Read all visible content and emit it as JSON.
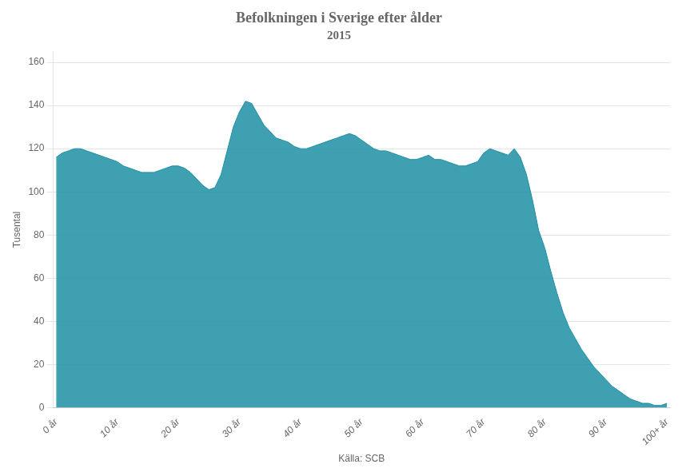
{
  "chart_data": {
    "type": "area",
    "title": "Befolkningen i Sverige efter ålder",
    "subtitle": "2015",
    "ylabel": "Tusental",
    "xlabel": "Källa: SCB",
    "color": "#1c8fa3",
    "x": [
      0,
      1,
      2,
      3,
      4,
      5,
      6,
      7,
      8,
      9,
      10,
      11,
      12,
      13,
      14,
      15,
      16,
      17,
      18,
      19,
      20,
      21,
      22,
      23,
      24,
      25,
      26,
      27,
      28,
      29,
      30,
      31,
      32,
      33,
      34,
      35,
      36,
      37,
      38,
      39,
      40,
      41,
      42,
      43,
      44,
      45,
      46,
      47,
      48,
      49,
      50,
      51,
      52,
      53,
      54,
      55,
      56,
      57,
      58,
      59,
      60,
      61,
      62,
      63,
      64,
      65,
      66,
      67,
      68,
      69,
      70,
      71,
      72,
      73,
      74,
      75,
      76,
      77,
      78,
      79,
      80,
      81,
      82,
      83,
      84,
      85,
      86,
      87,
      88,
      89,
      90,
      91,
      92,
      93,
      94,
      95,
      96,
      97,
      98,
      99,
      100
    ],
    "values": [
      116,
      118,
      119,
      120,
      120,
      119,
      118,
      117,
      116,
      115,
      114,
      112,
      111,
      110,
      109,
      109,
      109,
      110,
      111,
      112,
      112,
      111,
      109,
      106,
      103,
      101,
      102,
      108,
      119,
      130,
      137,
      142,
      141,
      136,
      131,
      128,
      125,
      124,
      123,
      121,
      120,
      120,
      121,
      122,
      123,
      124,
      125,
      126,
      127,
      126,
      124,
      122,
      120,
      119,
      119,
      118,
      117,
      116,
      115,
      115,
      116,
      117,
      115,
      115,
      114,
      113,
      112,
      112,
      113,
      114,
      118,
      120,
      119,
      118,
      117,
      120,
      116,
      108,
      96,
      82,
      74,
      63,
      53,
      44,
      37,
      32,
      27,
      23,
      19,
      16,
      13,
      10,
      8,
      6,
      4,
      3,
      2,
      2,
      1,
      1,
      2
    ],
    "xlim": [
      -0.5,
      100.5
    ],
    "xticks": [
      {
        "value": 0,
        "label": "0 år"
      },
      {
        "value": 10,
        "label": "10 år"
      },
      {
        "value": 20,
        "label": "20 år"
      },
      {
        "value": 30,
        "label": "30 år"
      },
      {
        "value": 40,
        "label": "40 år"
      },
      {
        "value": 50,
        "label": "50 år"
      },
      {
        "value": 60,
        "label": "60 år"
      },
      {
        "value": 70,
        "label": "70 år"
      },
      {
        "value": 80,
        "label": "80 år"
      },
      {
        "value": 90,
        "label": "90 år"
      },
      {
        "value": 100,
        "label": "100+ år"
      }
    ],
    "ylim": [
      0,
      165
    ],
    "yticks": [
      0,
      20,
      40,
      60,
      80,
      100,
      120,
      140,
      160
    ],
    "grid": true
  }
}
